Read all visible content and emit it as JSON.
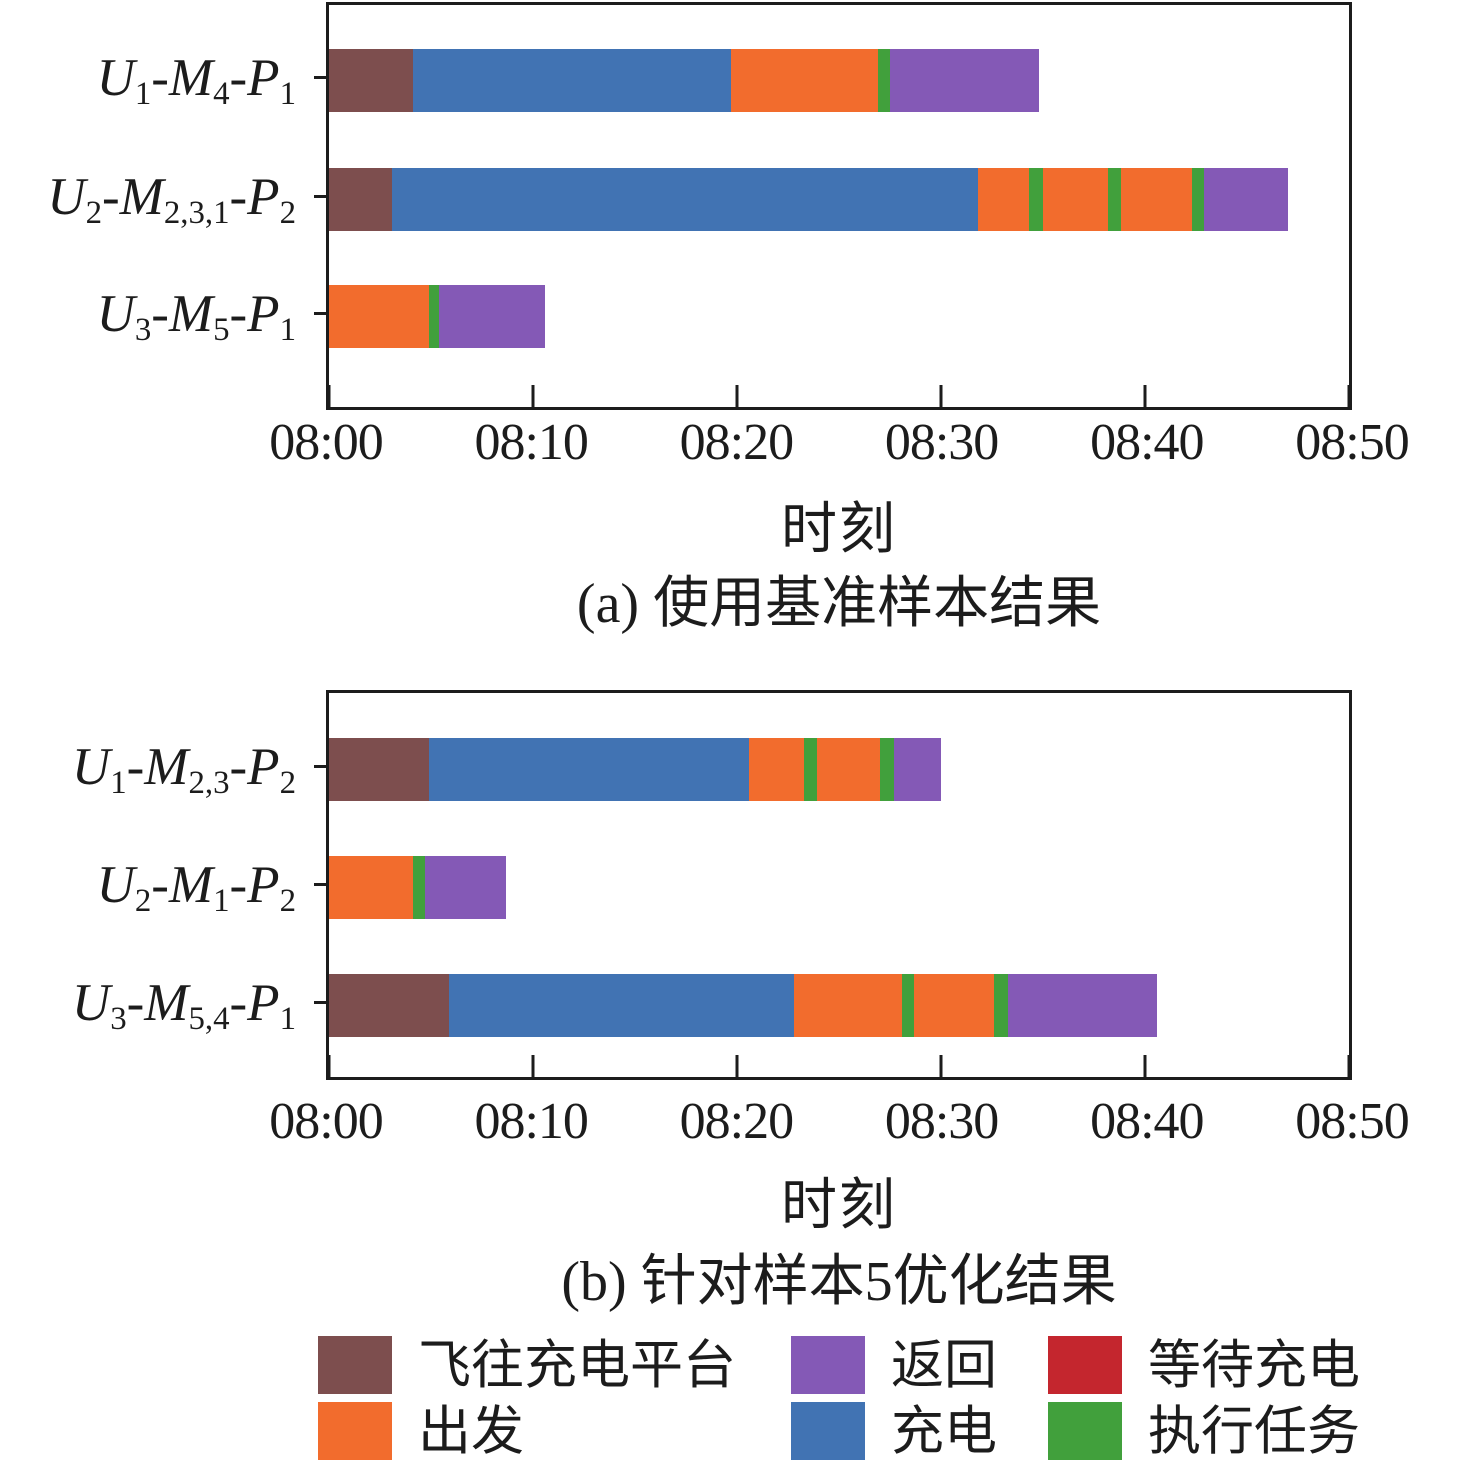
{
  "figure": {
    "background": "#ffffff",
    "text_color": "#1c1c1c"
  },
  "activities": {
    "fly_to_platform": {
      "label": "飞往充电平台",
      "color": "#7d4e4e"
    },
    "depart": {
      "label": "出发",
      "color": "#f26c2d"
    },
    "return": {
      "label": "返回",
      "color": "#8459b6"
    },
    "charge": {
      "label": "充电",
      "color": "#4173b3"
    },
    "wait_charge": {
      "label": "等待充电",
      "color": "#c4262e"
    },
    "execute_task": {
      "label": "执行任务",
      "color": "#41a03c"
    }
  },
  "legend": {
    "items": [
      {
        "key": "fly_to_platform",
        "label": "飞往充电平台",
        "row": 0,
        "col": 0
      },
      {
        "key": "return",
        "label": "返回",
        "row": 0,
        "col": 1
      },
      {
        "key": "wait_charge",
        "label": "等待充电",
        "row": 0,
        "col": 2
      },
      {
        "key": "depart",
        "label": "出发",
        "row": 1,
        "col": 0
      },
      {
        "key": "charge",
        "label": "充电",
        "row": 1,
        "col": 1
      },
      {
        "key": "execute_task",
        "label": "执行任务",
        "row": 1,
        "col": 2
      }
    ]
  },
  "chart_data": [
    {
      "type": "gantt",
      "title": "(a) 使用基准样本结果",
      "xlabel": "时刻",
      "x_axis": {
        "tick_labels": [
          "08:00",
          "08:10",
          "08:20",
          "08:30",
          "08:40",
          "08:50"
        ],
        "range_minutes": [
          0,
          50
        ],
        "unit": "minutes after 08:00"
      },
      "rows": [
        {
          "label": "U1-M4-P1",
          "label_parts": [
            {
              "t": "U",
              "s": "1"
            },
            {
              "t": "-M",
              "s": "4"
            },
            {
              "t": "-P",
              "s": "1"
            }
          ],
          "segments": [
            {
              "activity": "fly_to_platform",
              "start": 0,
              "end": 4.1
            },
            {
              "activity": "charge",
              "start": 4.1,
              "end": 19.7
            },
            {
              "activity": "depart",
              "start": 19.7,
              "end": 26.9
            },
            {
              "activity": "execute_task",
              "start": 26.9,
              "end": 27.5
            },
            {
              "activity": "return",
              "start": 27.5,
              "end": 34.8
            }
          ]
        },
        {
          "label": "U2-M2,3,1-P2",
          "label_parts": [
            {
              "t": "U",
              "s": "2"
            },
            {
              "t": "-M",
              "s": "2,3,1"
            },
            {
              "t": "-P",
              "s": "2"
            }
          ],
          "segments": [
            {
              "activity": "fly_to_platform",
              "start": 0,
              "end": 3.1
            },
            {
              "activity": "charge",
              "start": 3.1,
              "end": 31.8
            },
            {
              "activity": "depart",
              "start": 31.8,
              "end": 34.3
            },
            {
              "activity": "execute_task",
              "start": 34.3,
              "end": 35.0
            },
            {
              "activity": "depart",
              "start": 35.0,
              "end": 38.2
            },
            {
              "activity": "execute_task",
              "start": 38.2,
              "end": 38.8
            },
            {
              "activity": "depart",
              "start": 38.8,
              "end": 42.3
            },
            {
              "activity": "execute_task",
              "start": 42.3,
              "end": 42.9
            },
            {
              "activity": "return",
              "start": 42.9,
              "end": 47.0
            }
          ]
        },
        {
          "label": "U3-M5-P1",
          "label_parts": [
            {
              "t": "U",
              "s": "3"
            },
            {
              "t": "-M",
              "s": "5"
            },
            {
              "t": "-P",
              "s": "1"
            }
          ],
          "segments": [
            {
              "activity": "depart",
              "start": 0,
              "end": 4.9
            },
            {
              "activity": "execute_task",
              "start": 4.9,
              "end": 5.4
            },
            {
              "activity": "return",
              "start": 5.4,
              "end": 10.6
            }
          ]
        }
      ]
    },
    {
      "type": "gantt",
      "title": "(b) 针对样本5优化结果",
      "xlabel": "时刻",
      "x_axis": {
        "tick_labels": [
          "08:00",
          "08:10",
          "08:20",
          "08:30",
          "08:40",
          "08:50"
        ],
        "range_minutes": [
          0,
          50
        ],
        "unit": "minutes after 08:00"
      },
      "rows": [
        {
          "label": "U1-M2,3-P2",
          "label_parts": [
            {
              "t": "U",
              "s": "1"
            },
            {
              "t": "-M",
              "s": "2,3"
            },
            {
              "t": "-P",
              "s": "2"
            }
          ],
          "segments": [
            {
              "activity": "fly_to_platform",
              "start": 0,
              "end": 4.9
            },
            {
              "activity": "charge",
              "start": 4.9,
              "end": 20.6
            },
            {
              "activity": "depart",
              "start": 20.6,
              "end": 23.3
            },
            {
              "activity": "execute_task",
              "start": 23.3,
              "end": 23.9
            },
            {
              "activity": "depart",
              "start": 23.9,
              "end": 27.0
            },
            {
              "activity": "execute_task",
              "start": 27.0,
              "end": 27.7
            },
            {
              "activity": "return",
              "start": 27.7,
              "end": 30.0
            }
          ]
        },
        {
          "label": "U2-M1-P2",
          "label_parts": [
            {
              "t": "U",
              "s": "2"
            },
            {
              "t": "-M",
              "s": "1"
            },
            {
              "t": "-P",
              "s": "2"
            }
          ],
          "segments": [
            {
              "activity": "depart",
              "start": 0,
              "end": 4.1
            },
            {
              "activity": "execute_task",
              "start": 4.1,
              "end": 4.7
            },
            {
              "activity": "return",
              "start": 4.7,
              "end": 8.7
            }
          ]
        },
        {
          "label": "U3-M5,4-P1",
          "label_parts": [
            {
              "t": "U",
              "s": "3"
            },
            {
              "t": "-M",
              "s": "5,4"
            },
            {
              "t": "-P",
              "s": "1"
            }
          ],
          "segments": [
            {
              "activity": "fly_to_platform",
              "start": 0,
              "end": 5.9
            },
            {
              "activity": "charge",
              "start": 5.9,
              "end": 22.8
            },
            {
              "activity": "depart",
              "start": 22.8,
              "end": 28.1
            },
            {
              "activity": "execute_task",
              "start": 28.1,
              "end": 28.7
            },
            {
              "activity": "depart",
              "start": 28.7,
              "end": 32.6
            },
            {
              "activity": "execute_task",
              "start": 32.6,
              "end": 33.3
            },
            {
              "activity": "return",
              "start": 33.3,
              "end": 40.6
            }
          ]
        }
      ]
    }
  ]
}
